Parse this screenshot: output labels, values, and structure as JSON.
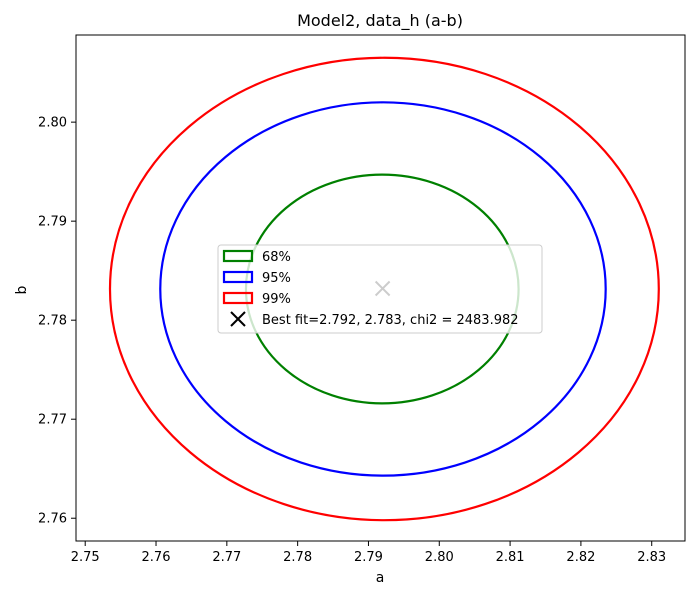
{
  "chart_data": {
    "type": "contour",
    "title": "Model2, data_h (a-b)",
    "xlabel": "a",
    "ylabel": "b",
    "xlim": [
      2.7487,
      2.8347
    ],
    "ylim": [
      2.7577,
      2.8088
    ],
    "xticks": [
      2.75,
      2.76,
      2.77,
      2.78,
      2.79,
      2.8,
      2.81,
      2.82,
      2.83
    ],
    "xtick_labels": [
      "2.75",
      "2.76",
      "2.77",
      "2.78",
      "2.79",
      "2.80",
      "2.81",
      "2.82",
      "2.83"
    ],
    "yticks": [
      2.76,
      2.77,
      2.78,
      2.79,
      2.8
    ],
    "ytick_labels": [
      "2.76",
      "2.77",
      "2.78",
      "2.79",
      "2.80"
    ],
    "grid": false,
    "legend_position": "center",
    "series": [
      {
        "name": "68%",
        "color": "#008000",
        "center": [
          2.792,
          2.7832
        ],
        "x_range": [
          2.7727,
          2.8112
        ],
        "y_range": [
          2.7716,
          2.7947
        ]
      },
      {
        "name": "95%",
        "color": "#0000ff",
        "center": [
          2.792,
          2.7832
        ],
        "x_range": [
          2.7606,
          2.8235
        ],
        "y_range": [
          2.7643,
          2.802
        ]
      },
      {
        "name": "99%",
        "color": "#ff0000",
        "center": [
          2.792,
          2.7832
        ],
        "x_range": [
          2.7535,
          2.831
        ],
        "y_range": [
          2.7598,
          2.8065
        ]
      }
    ],
    "best_fit": {
      "label": "Best fit=2.792, 2.783, chi2 = 2483.982",
      "x": 2.792,
      "y": 2.7832,
      "marker": "x",
      "color": "#000000"
    }
  }
}
